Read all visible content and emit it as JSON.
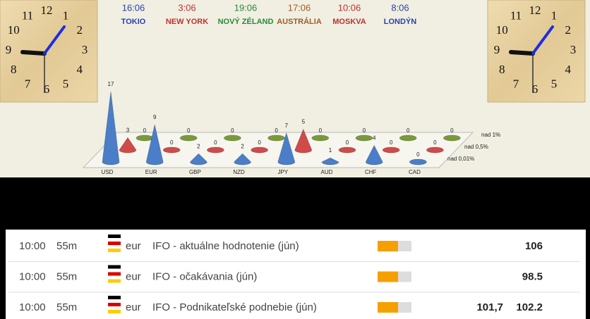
{
  "clocks": {
    "dial": [
      "12",
      "1",
      "2",
      "3",
      "4",
      "5",
      "6",
      "7",
      "8",
      "9",
      "10",
      "11"
    ]
  },
  "cities": [
    {
      "time": "16:06",
      "name": "TOKIO",
      "color": "#2a3fb0"
    },
    {
      "time": "3:06",
      "name": "NEW YORK",
      "color": "#c03030"
    },
    {
      "time": "19:06",
      "name": "NOVÝ ZÉLAND",
      "color": "#2a8a3a"
    },
    {
      "time": "17:06",
      "name": "AUSTRÁLIA",
      "color": "#a05a20"
    },
    {
      "time": "10:06",
      "name": "MOSKVA",
      "color": "#c03030"
    },
    {
      "time": "8:06",
      "name": "LONDÝN",
      "color": "#2a3fb0"
    }
  ],
  "chart_data": {
    "type": "cone3d",
    "categories": [
      "USD",
      "EUR",
      "GBP",
      "NZD",
      "JPY",
      "AUD",
      "CHF",
      "CAD"
    ],
    "series": [
      {
        "name": "nad 0,01%",
        "color": "#4a7ec8",
        "values": [
          17,
          9,
          2,
          2,
          7,
          1,
          4,
          0
        ]
      },
      {
        "name": "nad 0,5%",
        "color": "#d04a4a",
        "values": [
          3,
          0,
          0,
          0,
          5,
          0,
          0,
          0
        ]
      },
      {
        "name": "nad 1%",
        "color": "#7a9a3a",
        "values": [
          0,
          0,
          0,
          0,
          0,
          0,
          0,
          0
        ]
      }
    ]
  },
  "table": {
    "rows": [
      {
        "time": "10:00",
        "countdown": "55m",
        "currency": "eur",
        "event": "IFO - aktuálne hodnotenie (jún)",
        "value": "106"
      },
      {
        "time": "10:00",
        "countdown": "55m",
        "currency": "eur",
        "event": "IFO - očakávania (jún)",
        "value": "98.5"
      },
      {
        "time": "10:00",
        "countdown": "55m",
        "currency": "eur",
        "event": "IFO - Podnikateľské podnebie (jún)",
        "previous": "101,7",
        "value": "102.2"
      }
    ]
  }
}
